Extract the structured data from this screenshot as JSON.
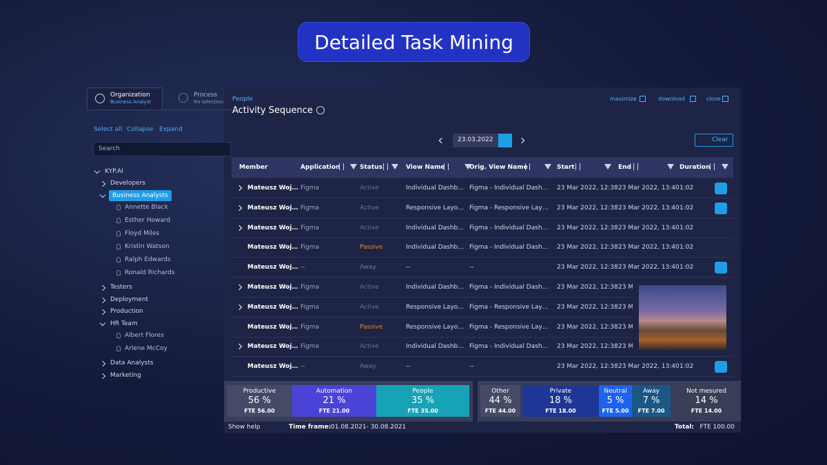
{
  "header": {
    "title": "Detailed Task Mining"
  },
  "sidebar": {
    "tabs": [
      {
        "label": "Organization",
        "sub": "Business Analyst"
      },
      {
        "label": "Process",
        "sub": "No selection"
      }
    ],
    "actions": [
      "Select all",
      "Collapse",
      "Expand"
    ],
    "search": "Search",
    "tree": {
      "label": "KYP.AI",
      "children": [
        {
          "label": "Developers"
        },
        {
          "label": "Business Analysts",
          "selected": true,
          "children": [
            {
              "label": "Annette Black"
            },
            {
              "label": "Esther Howard"
            },
            {
              "label": "Floyd Miles"
            },
            {
              "label": "Kristin Watson"
            },
            {
              "label": "Ralph Edwards"
            },
            {
              "label": "Ronald Richards"
            }
          ]
        },
        {
          "label": "Testers"
        },
        {
          "label": "Deployment"
        },
        {
          "label": "Production"
        },
        {
          "label": "HR Team",
          "children": [
            {
              "label": "Albert Flores"
            },
            {
              "label": "Arlene McCoy"
            }
          ]
        },
        {
          "label": "Data Analysts"
        },
        {
          "label": "Marketing"
        }
      ]
    }
  },
  "panel": {
    "breadcrumb": "People",
    "title": "Activity Sequence",
    "controls": [
      "maximize",
      "download",
      "close"
    ],
    "date": "23.03.2022",
    "clear": "Clear"
  },
  "table": {
    "columns": [
      "Member",
      "Application",
      "Status",
      "View Name",
      "Orig. View Name",
      "Start",
      "End",
      "Duration"
    ],
    "rows": [
      {
        "expandable": true,
        "screenshot": true,
        "cells": [
          "Mateusz Woj…",
          "Figma",
          "Active",
          "Individual Dashb…",
          "Figma - Individual Dash…",
          "23 Mar 2022, 12:38",
          "23 Mar 2022, 13:40",
          "1:02"
        ]
      },
      {
        "expandable": true,
        "screenshot": true,
        "cells": [
          "Mateusz Woj…",
          "Figma",
          "Active",
          "Responsive Layo…",
          "Figma -  Responsive Lay…",
          "23 Mar 2022, 12:38",
          "23 Mar 2022, 13:40",
          "1:02"
        ]
      },
      {
        "expandable": true,
        "screenshot": false,
        "cells": [
          "Mateusz Woj…",
          "Figma",
          "Active",
          "Individual Dashb…",
          "Figma - Individual Dash…",
          "23 Mar 2022, 12:38",
          "23 Mar 2022, 13:40",
          "1:02"
        ]
      },
      {
        "expandable": false,
        "screenshot": false,
        "cells": [
          "Mateusz Woj…",
          "Figma",
          "Passive",
          "Individual Dashb…",
          "Figma - Individual Dash…",
          "23 Mar 2022, 12:38",
          "23 Mar 2022, 13:40",
          "1:02"
        ]
      },
      {
        "expandable": false,
        "screenshot": true,
        "cells": [
          "Mateusz Woj…",
          "--",
          "Away",
          "--",
          "--",
          "23 Mar 2022, 12:38",
          "23 Mar 2022, 13:40",
          "1:02"
        ]
      },
      {
        "expandable": true,
        "screenshot": false,
        "cells": [
          "Mateusz Woj…",
          "Figma",
          "Active",
          "Individual Dashb…",
          "Figma - Individual Dash…",
          "23 Mar 2022, 12:38",
          "23 M",
          ""
        ]
      },
      {
        "expandable": true,
        "screenshot": false,
        "cells": [
          "Mateusz Woj…",
          "Figma",
          "Active",
          "Responsive Layo…",
          "Figma -  Responsive Lay…",
          "23 Mar 2022, 12:38",
          "23 M",
          ""
        ]
      },
      {
        "expandable": false,
        "screenshot": false,
        "cells": [
          "Mateusz Woj…",
          "Figma",
          "Passive",
          "Responsive Layo…",
          "Figma -  Responsive Lay…",
          "23 Mar 2022, 12:38",
          "23 M",
          ""
        ]
      },
      {
        "expandable": true,
        "screenshot": false,
        "cells": [
          "Mateusz Woj…",
          "Figma",
          "Active",
          "Individual Dashb…",
          "Figma - Individual Dash…",
          "23 Mar 2022, 12:38",
          "23 M",
          ""
        ]
      },
      {
        "expandable": false,
        "screenshot": true,
        "cells": [
          "Mateusz Woj…",
          "--",
          "Away",
          "--",
          "--",
          "23 Mar 2022, 12:38",
          "23 Mar 2022, 13:40",
          "1:02"
        ]
      }
    ]
  },
  "summary": {
    "groups": [
      {
        "cards": [
          {
            "label": "Productive",
            "percent": "56 %",
            "fte": "FTE 56.00",
            "color": "#454a66"
          },
          {
            "label": "Automation",
            "percent": "21 %",
            "fte": "FTE 21.00",
            "color": "#4b43d8"
          },
          {
            "label": "People",
            "percent": "35 %",
            "fte": "FTE 35.00",
            "color": "#17a2b8"
          }
        ]
      },
      {
        "cards": [
          {
            "label": "Other",
            "percent": "44 %",
            "fte": "FTE 44.00",
            "color": "#454a66"
          },
          {
            "label": "Private",
            "percent": "18 %",
            "fte": "FTE 18.00",
            "color": "#1e3794"
          },
          {
            "label": "Neutral",
            "percent": "5 %",
            "fte": "FTE 5.00",
            "color": "#1d63f0"
          },
          {
            "label": "Away",
            "percent": "7 %",
            "fte": "FTE 7.00",
            "color": "#1b5784"
          },
          {
            "label": "Not mesured",
            "percent": "14 %",
            "fte": "FTE 14.00",
            "color": "#3a3f58"
          }
        ]
      }
    ]
  },
  "footer": {
    "help": "Show help",
    "timeframe_label": "Time frame:",
    "timeframe": "01.08.2021- 30.08.2021",
    "total_label": "Total:",
    "total": "FTE 100.00"
  }
}
